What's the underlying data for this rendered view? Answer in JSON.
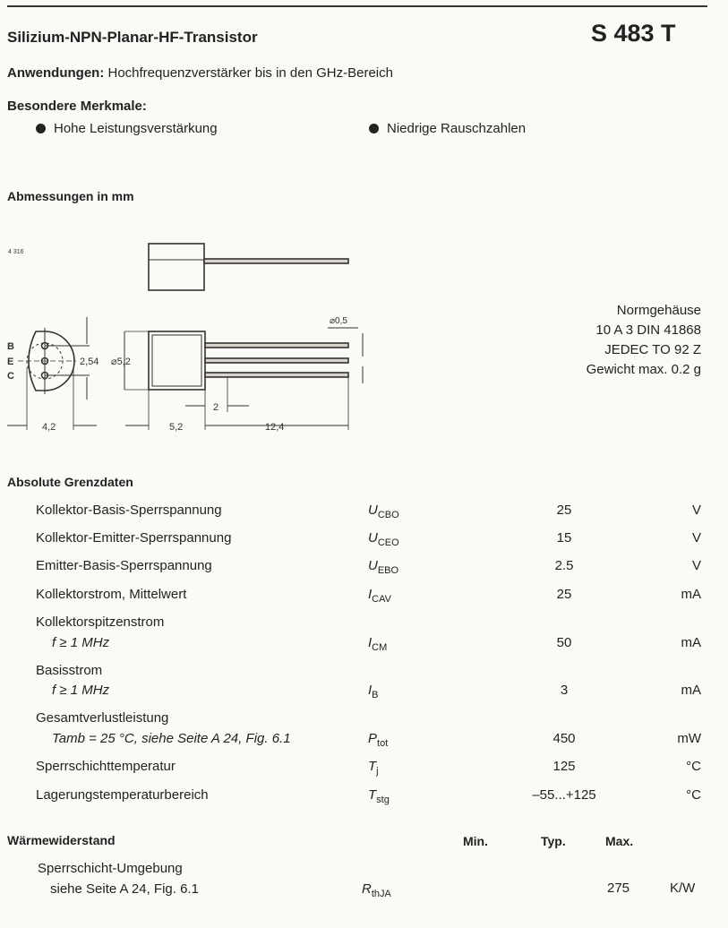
{
  "header": {
    "title": "Silizium-NPN-Planar-HF-Transistor",
    "type_number": "S 483 T"
  },
  "applications": {
    "label": "Anwendungen:",
    "text": "Hochfrequenzverstärker bis in den GHz-Bereich"
  },
  "features": {
    "heading": "Besondere Merkmale:",
    "items": [
      "Hohe Leistungsverstärkung",
      "Niedrige Rauschzahlen"
    ]
  },
  "dimensions": {
    "heading": "Abmessungen in mm",
    "drawing_id": "4 316",
    "pins": [
      "B",
      "E",
      "C"
    ],
    "labels": {
      "pin_pitch": "2,54",
      "body_diameter": "⌀5,2",
      "lead_diameter": "⌀0,5",
      "lead_step": "2",
      "body_depth": "4,2",
      "body_length": "5,2",
      "lead_length": "12,4"
    }
  },
  "package": {
    "lines": [
      "Normgehäuse",
      "10 A 3 DIN 41868",
      "JEDEC TO 92 Z",
      "Gewicht max. 0.2 g"
    ]
  },
  "absolute_ratings": {
    "heading": "Absolute Grenzdaten",
    "rows": [
      {
        "label": "Kollektor-Basis-Sperrspannung",
        "sub": "",
        "sym": "U",
        "sym_sub": "CBO",
        "value": "25",
        "unit": "V"
      },
      {
        "label": "Kollektor-Emitter-Sperrspannung",
        "sub": "",
        "sym": "U",
        "sym_sub": "CEO",
        "value": "15",
        "unit": "V"
      },
      {
        "label": "Emitter-Basis-Sperrspannung",
        "sub": "",
        "sym": "U",
        "sym_sub": "EBO",
        "value": "2.5",
        "unit": "V"
      },
      {
        "label": "Kollektorstrom, Mittelwert",
        "sub": "",
        "sym": "I",
        "sym_sub": "CAV",
        "value": "25",
        "unit": "mA"
      },
      {
        "label": "Kollektorspitzenstrom",
        "sub": "f ≥ 1 MHz",
        "sym": "I",
        "sym_sub": "CM",
        "value": "50",
        "unit": "mA"
      },
      {
        "label": "Basisstrom",
        "sub": "f ≥ 1 MHz",
        "sym": "I",
        "sym_sub": "B",
        "value": "3",
        "unit": "mA"
      },
      {
        "label": "Gesamtverlustleistung",
        "sub": "Tamb = 25 °C, siehe Seite A 24, Fig. 6.1",
        "sym": "P",
        "sym_sub": "tot",
        "value": "450",
        "unit": "mW"
      },
      {
        "label": "Sperrschichttemperatur",
        "sub": "",
        "sym": "T",
        "sym_sub": "j",
        "value": "125",
        "unit": "°C"
      },
      {
        "label": "Lagerungstemperaturbereich",
        "sub": "",
        "sym": "T",
        "sym_sub": "stg",
        "value": "–55...+125",
        "unit": "°C"
      }
    ]
  },
  "thermal": {
    "heading": "Wärmewiderstand",
    "columns": [
      "Min.",
      "Typ.",
      "Max."
    ],
    "row": {
      "label": "Sperrschicht-Umgebung",
      "sub": "siehe Seite A 24, Fig. 6.1",
      "sym": "R",
      "sym_sub": "thJA",
      "min": "",
      "typ": "",
      "max": "275",
      "unit": "K/W"
    }
  }
}
